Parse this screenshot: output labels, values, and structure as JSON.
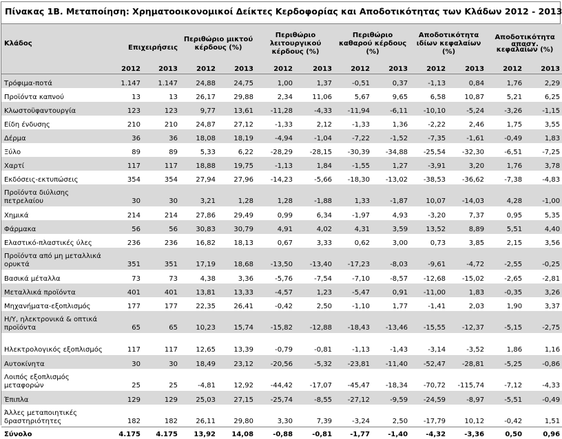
{
  "title": "Πίνακας 1Β. Μεταποίηση: Χρηματοοικονομικοί Δείκτες Κερδοφορίας και Αποδοτικότητας των Κλάδων 2012 - 2013",
  "headers": {
    "sector": "Κλάδος",
    "businesses": "Επιχειρήσεις",
    "gross_margin": "Περιθώριο μικτού κέρδους (%)",
    "operating_margin": "Περιθώριο λειτουργικού κέρδους (%)",
    "net_margin": "Περιθώριο καθαρού κέρδους (%)",
    "roe": "Αποδοτικότητα ιδίων κεφαλαίων (%)",
    "roa_top": "Αποδοτικότητα",
    "roa_cut": "απασχ.",
    "roa_bottom": "κεφαλαίων (%)",
    "years": [
      "2012",
      "2013",
      "2012",
      "2013",
      "2012",
      "2013",
      "2012",
      "2013",
      "2012",
      "2013",
      "2012",
      "2013"
    ]
  },
  "rows": [
    {
      "name": "Τρόφιμα-ποτά",
      "v": [
        "1.147",
        "1.147",
        "24,88",
        "24,75",
        "1,00",
        "1,37",
        "-0,51",
        "0,37",
        "-1,13",
        "0,84",
        "1,76",
        "2,29"
      ]
    },
    {
      "name": "Προϊόντα καπνού",
      "v": [
        "13",
        "13",
        "26,17",
        "29,88",
        "2,34",
        "11,06",
        "5,67",
        "9,65",
        "6,58",
        "10,87",
        "5,21",
        "6,25"
      ]
    },
    {
      "name": "Κλωστοϋφαντουργία",
      "v": [
        "123",
        "123",
        "9,77",
        "13,61",
        "-11,28",
        "-4,33",
        "-11,94",
        "-6,11",
        "-10,10",
        "-5,24",
        "-3,26",
        "-1,15"
      ]
    },
    {
      "name": "Είδη ένδυσης",
      "v": [
        "210",
        "210",
        "24,87",
        "27,12",
        "-1,33",
        "2,12",
        "-1,33",
        "1,36",
        "-2,22",
        "2,46",
        "1,75",
        "3,55"
      ]
    },
    {
      "name": "Δέρμα",
      "v": [
        "36",
        "36",
        "18,08",
        "18,19",
        "-4,94",
        "-1,04",
        "-7,22",
        "-1,52",
        "-7,35",
        "-1,61",
        "-0,49",
        "1,83"
      ]
    },
    {
      "name": "Ξύλο",
      "v": [
        "89",
        "89",
        "5,33",
        "6,22",
        "-28,29",
        "-28,15",
        "-30,39",
        "-34,88",
        "-25,54",
        "-32,30",
        "-6,51",
        "-7,25"
      ]
    },
    {
      "name": "Χαρτί",
      "v": [
        "117",
        "117",
        "18,88",
        "19,75",
        "-1,13",
        "1,84",
        "-1,55",
        "1,27",
        "-3,91",
        "3,20",
        "1,76",
        "3,78"
      ]
    },
    {
      "name": "Εκδόσεις-εκτυπώσεις",
      "v": [
        "354",
        "354",
        "27,94",
        "27,96",
        "-14,23",
        "-5,66",
        "-18,30",
        "-13,02",
        "-38,53",
        "-36,62",
        "-7,38",
        "-4,83"
      ]
    },
    {
      "name": "Προϊόντα διύλισης πετρελαίου",
      "v": [
        "30",
        "30",
        "3,21",
        "1,28",
        "1,28",
        "-1,88",
        "1,33",
        "-1,87",
        "10,07",
        "-14,03",
        "4,28",
        "-1,00"
      ]
    },
    {
      "name": "Χημικά",
      "v": [
        "214",
        "214",
        "27,86",
        "29,49",
        "0,99",
        "6,34",
        "-1,97",
        "4,93",
        "-3,20",
        "7,37",
        "0,95",
        "5,35"
      ]
    },
    {
      "name": "Φάρμακα",
      "v": [
        "56",
        "56",
        "30,83",
        "30,79",
        "4,91",
        "4,02",
        "4,31",
        "3,59",
        "13,52",
        "8,89",
        "5,51",
        "4,40"
      ]
    },
    {
      "name": "Ελαστικό-πλαστικές ύλες",
      "v": [
        "236",
        "236",
        "16,82",
        "18,13",
        "0,67",
        "3,33",
        "0,62",
        "3,00",
        "0,73",
        "3,85",
        "2,15",
        "3,56"
      ]
    },
    {
      "name": "Προϊόντα από μη μεταλλικά ορυκτά",
      "v": [
        "351",
        "351",
        "17,19",
        "18,68",
        "-13,50",
        "-13,40",
        "-17,23",
        "-8,03",
        "-9,61",
        "-4,72",
        "-2,55",
        "-0,25"
      ]
    },
    {
      "name": "Βασικά μέταλλα",
      "v": [
        "73",
        "73",
        "4,38",
        "3,36",
        "-5,76",
        "-7,54",
        "-7,10",
        "-8,57",
        "-12,68",
        "-15,02",
        "-2,65",
        "-2,81"
      ]
    },
    {
      "name": "Μεταλλικά προϊόντα",
      "v": [
        "401",
        "401",
        "13,81",
        "13,33",
        "-4,57",
        "1,23",
        "-5,47",
        "0,91",
        "-11,00",
        "1,83",
        "-0,35",
        "3,26"
      ]
    },
    {
      "name": "Μηχανήματα-εξοπλισμός",
      "v": [
        "177",
        "177",
        "22,35",
        "26,41",
        "-0,42",
        "2,50",
        "-1,10",
        "1,77",
        "-1,41",
        "2,03",
        "1,90",
        "3,37"
      ]
    },
    {
      "name": "Η/Υ, ηλεκτρονικά & οπτικά προϊόντα",
      "v": [
        "65",
        "65",
        "10,23",
        "15,74",
        "-15,82",
        "-12,88",
        "-18,43",
        "-13,46",
        "-15,55",
        "-12,37",
        "-5,15",
        "-2,75"
      ]
    },
    {
      "name": "Ηλεκτρολογικός εξοπλισμός",
      "v": [
        "117",
        "117",
        "12,65",
        "13,39",
        "-0,79",
        "-0,81",
        "-1,13",
        "-1,43",
        "-3,14",
        "-3,52",
        "1,86",
        "1,16"
      ]
    },
    {
      "name": "Αυτοκίνητα",
      "v": [
        "30",
        "30",
        "18,49",
        "23,12",
        "-20,56",
        "-5,32",
        "-23,81",
        "-11,40",
        "-52,47",
        "-28,81",
        "-5,25",
        "-0,86"
      ]
    },
    {
      "name": "Λοιπός εξοπλισμός μεταφορών",
      "v": [
        "25",
        "25",
        "-4,81",
        "12,92",
        "-44,42",
        "-17,07",
        "-45,47",
        "-18,34",
        "-70,72",
        "-115,74",
        "-7,12",
        "-4,33"
      ]
    },
    {
      "name": "Έπιπλα",
      "v": [
        "129",
        "129",
        "25,03",
        "27,15",
        "-25,74",
        "-8,55",
        "-27,12",
        "-9,59",
        "-24,59",
        "-8,97",
        "-5,51",
        "-0,49"
      ]
    },
    {
      "name": "Άλλες μεταποιητικές δραστηριότητες",
      "v": [
        "182",
        "182",
        "26,11",
        "29,80",
        "3,30",
        "7,39",
        "-3,24",
        "2,50",
        "-17,79",
        "10,12",
        "-0,42",
        "1,51"
      ]
    }
  ],
  "total": {
    "name": "Σύνολο",
    "v": [
      "4.175",
      "4.175",
      "13,92",
      "14,08",
      "-0,88",
      "-0,81",
      "-1,77",
      "-1,40",
      "-4,32",
      "-3,36",
      "0,50",
      "0,96"
    ]
  }
}
